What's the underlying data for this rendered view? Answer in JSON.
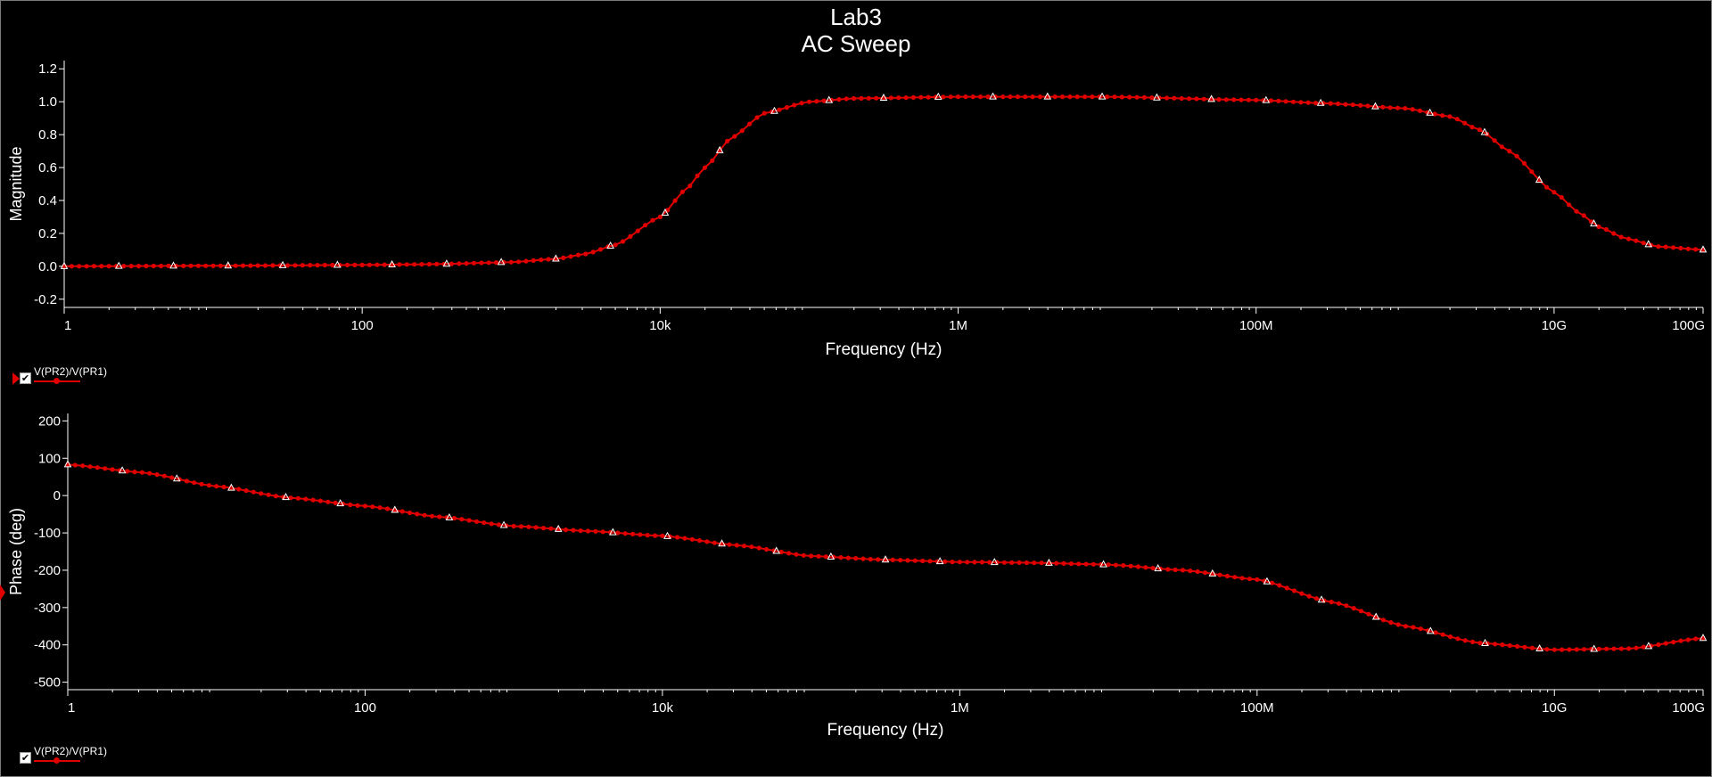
{
  "window": {
    "title_line1": "Lab3",
    "title_line2": "AC Sweep"
  },
  "colors": {
    "background": "#000000",
    "axis": "#ffffff",
    "trace": "#e00000",
    "text": "#ffffff"
  },
  "legend": {
    "top_label": "V(PR2)/V(PR1)",
    "bottom_label": "V(PR2)/V(PR1)",
    "checked": true
  },
  "chart_data": [
    {
      "type": "line",
      "title": "",
      "xlabel": "Frequency (Hz)",
      "ylabel": "Magnitude",
      "xscale": "log",
      "xlim": [
        1,
        100000000000
      ],
      "ylim": [
        -0.25,
        1.25
      ],
      "xticks": [
        {
          "value": 1,
          "label": "1"
        },
        {
          "value": 100,
          "label": "100"
        },
        {
          "value": 10000,
          "label": "10k"
        },
        {
          "value": 1000000,
          "label": "1M"
        },
        {
          "value": 100000000,
          "label": "100M"
        },
        {
          "value": 10000000000,
          "label": "10G"
        },
        {
          "value": 100000000000,
          "label": "100G"
        }
      ],
      "yticks": [
        {
          "value": -0.2,
          "label": "-0.2"
        },
        {
          "value": 0.0,
          "label": "0.0"
        },
        {
          "value": 0.2,
          "label": "0.2"
        },
        {
          "value": 0.4,
          "label": "0.4"
        },
        {
          "value": 0.6,
          "label": "0.6"
        },
        {
          "value": 0.8,
          "label": "0.8"
        },
        {
          "value": 1.0,
          "label": "1.0"
        },
        {
          "value": 1.2,
          "label": "1.2"
        }
      ],
      "grid": false,
      "series": [
        {
          "name": "V(PR2)/V(PR1)",
          "x": [
            1,
            10,
            100,
            316,
            1000,
            2000,
            3160,
            5000,
            10000,
            15000,
            20000,
            30000,
            50000,
            100000,
            200000,
            1000000,
            10000000,
            100000000,
            300000000,
            1000000000,
            2000000000,
            3160000000,
            5000000000,
            10000000000,
            15000000000,
            20000000000,
            30000000000,
            50000000000,
            100000000000
          ],
          "values": [
            0.0,
            0.003,
            0.008,
            0.013,
            0.025,
            0.045,
            0.075,
            0.13,
            0.3,
            0.47,
            0.6,
            0.78,
            0.93,
            1.0,
            1.02,
            1.03,
            1.03,
            1.01,
            0.99,
            0.96,
            0.91,
            0.83,
            0.7,
            0.45,
            0.32,
            0.24,
            0.17,
            0.12,
            0.1
          ]
        }
      ]
    },
    {
      "type": "line",
      "title": "",
      "xlabel": "Frequency (Hz)",
      "ylabel": "Phase (deg)",
      "xscale": "log",
      "xlim": [
        1,
        100000000000
      ],
      "ylim": [
        -520,
        220
      ],
      "xticks": [
        {
          "value": 1,
          "label": "1"
        },
        {
          "value": 100,
          "label": "100"
        },
        {
          "value": 10000,
          "label": "10k"
        },
        {
          "value": 1000000,
          "label": "1M"
        },
        {
          "value": 100000000,
          "label": "100M"
        },
        {
          "value": 10000000000,
          "label": "10G"
        },
        {
          "value": 100000000000,
          "label": "100G"
        }
      ],
      "yticks": [
        {
          "value": -500,
          "label": "-500"
        },
        {
          "value": -400,
          "label": "-400"
        },
        {
          "value": -300,
          "label": "-300"
        },
        {
          "value": -200,
          "label": "-200"
        },
        {
          "value": -100,
          "label": "-100"
        },
        {
          "value": 0,
          "label": "0"
        },
        {
          "value": 100,
          "label": "100"
        },
        {
          "value": 200,
          "label": "200"
        }
      ],
      "grid": false,
      "series": [
        {
          "name": "V(PR2)/V(PR1)",
          "x": [
            1,
            3.16,
            10,
            31.6,
            100,
            316,
            1000,
            3160,
            10000,
            31600,
            100000,
            316000,
            1000000,
            3160000,
            10000000,
            31600000,
            100000000,
            316000000,
            1000000000,
            3160000000,
            10000000000,
            31600000000,
            100000000000
          ],
          "values": [
            83,
            62,
            25,
            -6,
            -28,
            -57,
            -82,
            -95,
            -108,
            -133,
            -162,
            -172,
            -178,
            -180,
            -185,
            -200,
            -225,
            -285,
            -350,
            -395,
            -413,
            -410,
            -382
          ]
        }
      ]
    }
  ]
}
